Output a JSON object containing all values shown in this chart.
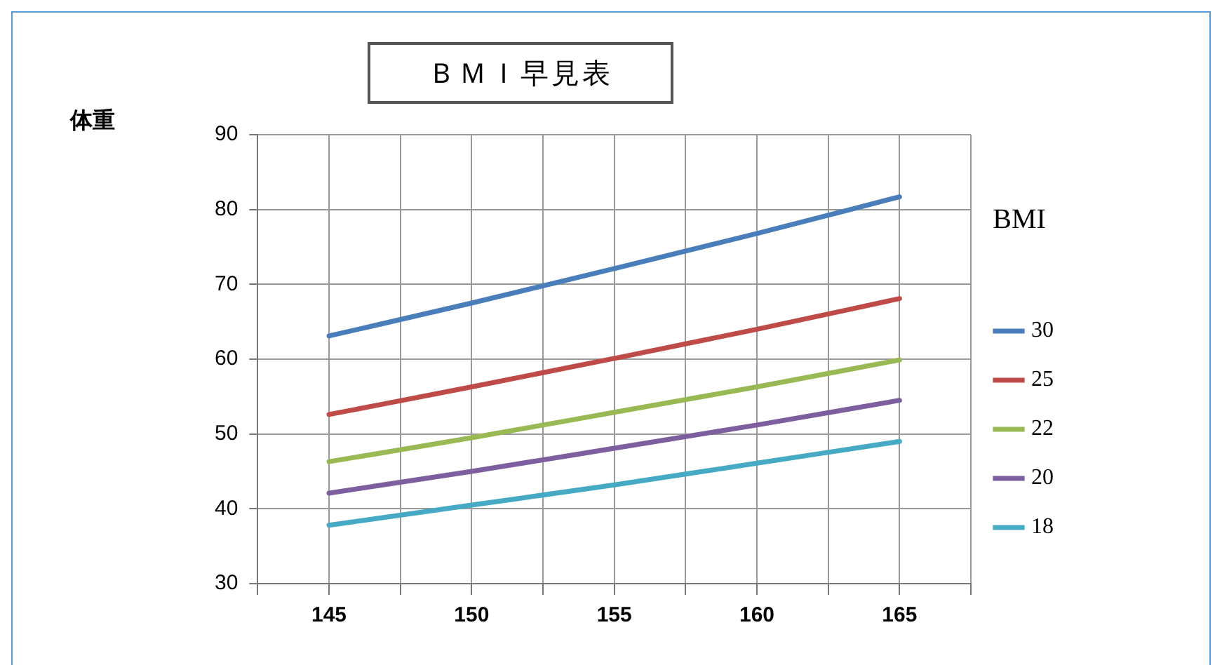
{
  "chart_data": {
    "type": "line",
    "title": "ＢＭＩ早見表",
    "ylabel": "体重",
    "legend_title": "BMI",
    "x": [
      145,
      150,
      155,
      160,
      165
    ],
    "xlim": [
      142.5,
      167.5
    ],
    "xticks": [
      {
        "value": 142.5,
        "label": null
      },
      145,
      {
        "value": 147.5,
        "label": null
      },
      150,
      {
        "value": 152.5,
        "label": null
      },
      155,
      {
        "value": 157.5,
        "label": null
      },
      160,
      {
        "value": 162.5,
        "label": null
      },
      165,
      {
        "value": 167.5,
        "label": null
      }
    ],
    "ylim": [
      30,
      90
    ],
    "yticks": [
      30,
      40,
      50,
      60,
      70,
      80,
      90
    ],
    "grid": true,
    "legend": "right",
    "marker": "none",
    "line_style": "solid",
    "series": [
      {
        "name": "30",
        "color": "#4a7ebb",
        "values": [
          63.1,
          67.5,
          72.1,
          76.8,
          81.7
        ]
      },
      {
        "name": "25",
        "color": "#be4b48",
        "values": [
          52.6,
          56.3,
          60.1,
          64.0,
          68.1
        ]
      },
      {
        "name": "22",
        "color": "#98b954",
        "values": [
          46.3,
          49.5,
          52.9,
          56.3,
          59.9
        ]
      },
      {
        "name": "20",
        "color": "#7d5fa0",
        "values": [
          42.1,
          45.0,
          48.1,
          51.2,
          54.5
        ]
      },
      {
        "name": "18",
        "color": "#46aac5",
        "values": [
          37.8,
          40.5,
          43.2,
          46.1,
          49.0
        ]
      }
    ]
  }
}
